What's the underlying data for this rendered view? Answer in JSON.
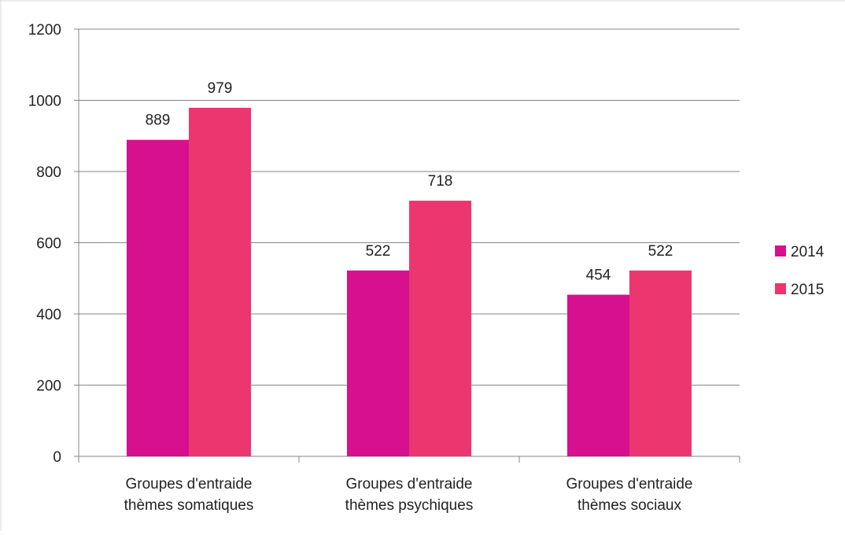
{
  "chart_data": {
    "type": "bar",
    "title": "",
    "xlabel": "",
    "ylabel": "",
    "ylim": [
      0,
      1200
    ],
    "yticks": [
      0,
      200,
      400,
      600,
      800,
      1000,
      1200
    ],
    "grid": true,
    "legend_position": "right",
    "categories": [
      [
        "Groupes d'entraide",
        "thèmes somatiques"
      ],
      [
        "Groupes d'entraide",
        "thèmes psychiques"
      ],
      [
        "Groupes d'entraide",
        "thèmes sociaux"
      ]
    ],
    "series": [
      {
        "name": "2014",
        "color": "#d6108f",
        "values": [
          889,
          522,
          454
        ]
      },
      {
        "name": "2015",
        "color": "#ec3670",
        "values": [
          979,
          718,
          522
        ]
      }
    ]
  }
}
